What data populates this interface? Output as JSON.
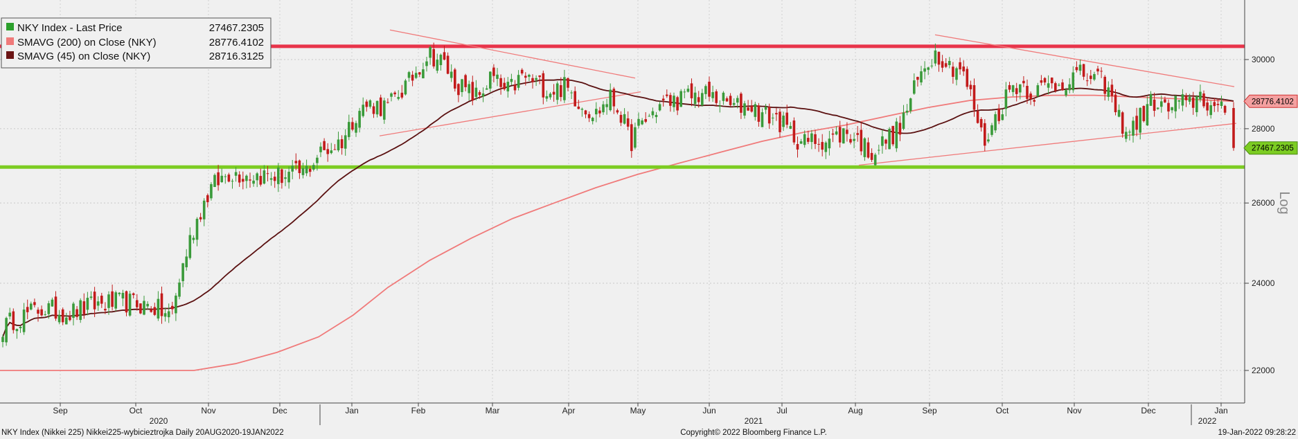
{
  "chart_data": {
    "type": "candlestick",
    "colors": {
      "up": "#3a9a3a",
      "down": "#c21b1b",
      "sma200": "#f07a7a",
      "sma45": "#5a1010",
      "resistance": "#e8344a",
      "support": "#7ccc22",
      "trend": "#f07a7a",
      "background": "#f0f0f0"
    },
    "legend": [
      {
        "name": "NKY Index - Last Price",
        "value": "27467.2305",
        "color": "#2ca02c"
      },
      {
        "name": "SMAVG (200)  on Close (NKY)",
        "value": "28776.4102",
        "color": "#f07a7a"
      },
      {
        "name": "SMAVG (45)  on Close (NKY)",
        "value": "28716.3125",
        "color": "#6b1414"
      }
    ],
    "ylim": [
      21200,
      31700
    ],
    "yscale": "log",
    "yticks": [
      22000,
      24000,
      26000,
      28000,
      30000
    ],
    "yaxis_label": "Log",
    "month_ticks": [
      {
        "label": "Sep",
        "x": 87
      },
      {
        "label": "Oct",
        "x": 196
      },
      {
        "label": "Nov",
        "x": 301
      },
      {
        "label": "Dec",
        "x": 404
      },
      {
        "label": "Jan",
        "x": 508
      },
      {
        "label": "Feb",
        "x": 604
      },
      {
        "label": "Mar",
        "x": 711
      },
      {
        "label": "Apr",
        "x": 821
      },
      {
        "label": "May",
        "x": 921
      },
      {
        "label": "Jun",
        "x": 1024
      },
      {
        "label": "Jul",
        "x": 1129
      },
      {
        "label": "Aug",
        "x": 1235
      },
      {
        "label": "Sep",
        "x": 1342
      },
      {
        "label": "Oct",
        "x": 1447
      },
      {
        "label": "Nov",
        "x": 1551
      },
      {
        "label": "Dec",
        "x": 1658
      },
      {
        "label": "Jan",
        "x": 1763
      }
    ],
    "year_labels": [
      {
        "label": "2020",
        "x": 229
      },
      {
        "label": "2021",
        "x": 1088
      },
      {
        "label": "2022",
        "x": 1743
      }
    ],
    "year_dividers": [
      462,
      1720
    ],
    "horizontal_levels": [
      {
        "name": "resistance",
        "value": 30400
      },
      {
        "name": "support",
        "value": 26950
      }
    ],
    "last_price": 27467.2305,
    "price_tags": [
      {
        "value": "28776.4102",
        "level": 28776.4102,
        "fill": "#f4a0a0",
        "border": "#d03030"
      },
      {
        "value": "27467.2305",
        "level": 27467.2305,
        "fill": "#7ccc22",
        "border": "#4a8a10"
      }
    ]
  },
  "footer": {
    "left": "NKY Index (Nikkei 225) Nikkei225-wybicieztrojka  Daily 20AUG2020-19JAN2022",
    "center": "Copyright© 2022 Bloomberg Finance L.P.",
    "right": "19-Jan-2022 09:28:22"
  }
}
